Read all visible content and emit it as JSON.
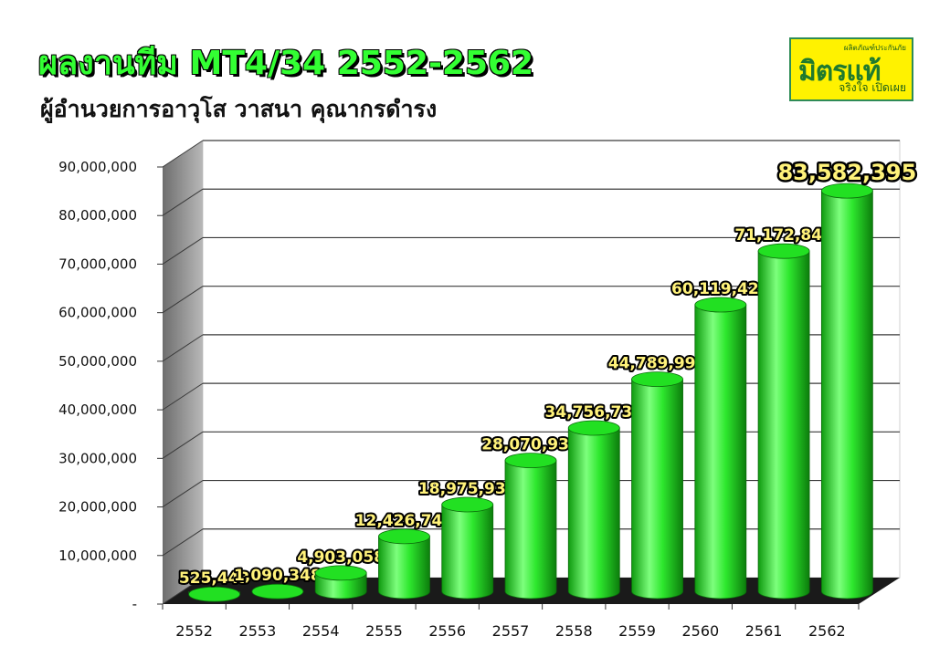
{
  "header": {
    "title": "ผลงานทีม MT4/34 2552-2562",
    "subtitle": "ผู้อำนวยการอาวุโส วาสนา คุณากรดำรง"
  },
  "logo": {
    "top_text": "ผลิตภัณฑ์ประกันภัย",
    "main_text": "มิตรแท้",
    "bottom_text": "จริงใจ เปิดเผย"
  },
  "colors": {
    "bar": "#22e022",
    "bar_dark": "#0f8a0f",
    "bar_light": "#8cff8c",
    "label_fill": "#fff27a",
    "floor": "#1a1a1a",
    "wall": "#9a9a9a"
  },
  "chart_data": {
    "type": "bar",
    "style": "3d-cylinder",
    "title": "ผลงานทีม MT4/34 2552-2562",
    "categories": [
      "2552",
      "2553",
      "2554",
      "2555",
      "2556",
      "2557",
      "2558",
      "2559",
      "2560",
      "2561",
      "2562"
    ],
    "values": [
      525443,
      1090348,
      4903058,
      12426747,
      18975939,
      28070939,
      34756737,
      44789994,
      60119428,
      71172843,
      83582395
    ],
    "data_labels": [
      "525,443",
      "1,090,348",
      "4,903,058",
      "12,426,747",
      "18,975,939",
      "28,070,939",
      "34,756,737",
      "44,789,994",
      "60,119,428",
      "71,172,843",
      "83,582,395"
    ],
    "ylim": [
      0,
      90000000
    ],
    "y_ticks": [
      0,
      10000000,
      20000000,
      30000000,
      40000000,
      50000000,
      60000000,
      70000000,
      80000000,
      90000000
    ],
    "y_tick_labels": [
      "-",
      "10,000,000",
      "20,000,000",
      "30,000,000",
      "40,000,000",
      "50,000,000",
      "60,000,000",
      "70,000,000",
      "80,000,000",
      "90,000,000"
    ],
    "grid": true,
    "legend": "none"
  }
}
